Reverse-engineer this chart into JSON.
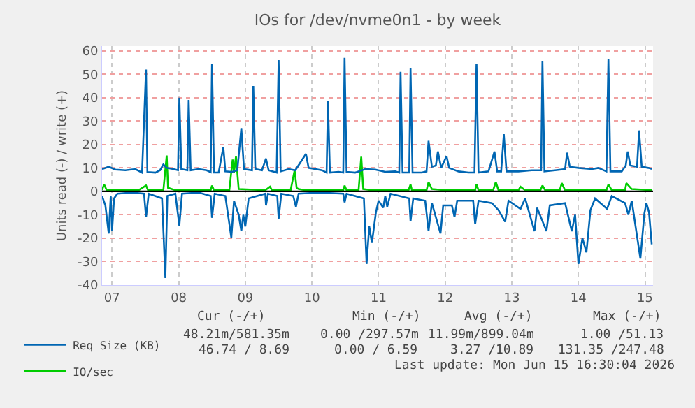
{
  "chart_data": {
    "type": "line",
    "title": "IOs for /dev/nvme0n1 - by week",
    "ylabel": "Units read (-) / write (+)",
    "xlim": [
      7.35,
      15.62
    ],
    "xticks": [
      {
        "value": 7.5,
        "label": "07"
      },
      {
        "value": 8.5,
        "label": "08"
      },
      {
        "value": 9.5,
        "label": "09"
      },
      {
        "value": 10.5,
        "label": "10"
      },
      {
        "value": 11.5,
        "label": "11"
      },
      {
        "value": 12.5,
        "label": "12"
      },
      {
        "value": 13.5,
        "label": "13"
      },
      {
        "value": 14.5,
        "label": "14"
      },
      {
        "value": 15.5,
        "label": "15"
      }
    ],
    "ylim": [
      -40,
      62
    ],
    "yticks": [
      -40,
      -30,
      -20,
      -10,
      0,
      10,
      20,
      30,
      40,
      50,
      60
    ],
    "grid": true,
    "legend": "bottom",
    "marker": "none",
    "line_style": "solid",
    "ref_lines": [
      {
        "axis": "y",
        "value": 0,
        "color": "#000000"
      }
    ],
    "series": [
      {
        "color": "#0066b3",
        "x": [
          7.35,
          7.4,
          7.45,
          7.48,
          7.5,
          7.53,
          7.58,
          7.8,
          7.98,
          8.01,
          8.05,
          8.25,
          8.3,
          8.33,
          8.45,
          8.51,
          8.55,
          8.8,
          8.98,
          9.0,
          9.04,
          9.2,
          9.29,
          9.33,
          9.4,
          9.44,
          9.47,
          9.5,
          9.55,
          9.8,
          9.81,
          9.84,
          9.98,
          10.0,
          10.04,
          10.22,
          10.26,
          10.3,
          10.6,
          10.97,
          10.99,
          11.02,
          11.28,
          11.32,
          11.36,
          11.4,
          11.46,
          11.5,
          11.57,
          11.6,
          11.63,
          11.68,
          11.96,
          11.98,
          12.02,
          12.2,
          12.25,
          12.3,
          12.43,
          12.47,
          12.6,
          12.64,
          12.68,
          12.92,
          12.95,
          13.0,
          13.2,
          13.3,
          13.4,
          13.45,
          13.63,
          13.7,
          13.84,
          13.88,
          14.02,
          14.07,
          14.3,
          14.4,
          14.45,
          14.5,
          14.56,
          14.62,
          14.68,
          14.75,
          14.93,
          15.0,
          15.2,
          15.25,
          15.3,
          15.43,
          15.49,
          15.52,
          15.56,
          15.6
        ],
        "values": [
          -2,
          -6,
          -18,
          -2,
          -17,
          -3,
          -1,
          -0.5,
          -1,
          -11,
          -1,
          -3,
          -37,
          -2,
          -1,
          -14.6,
          -1,
          -0.5,
          -2,
          -11.3,
          -1,
          -2,
          -19.8,
          -4,
          -10,
          -17,
          -10,
          -15,
          -3,
          -1,
          -6,
          -1,
          -2,
          -11.7,
          -1,
          -2,
          -6.6,
          -1,
          -0.5,
          -1,
          -4.7,
          -1,
          -3,
          -31,
          -15,
          -22,
          -9,
          -4,
          -7,
          -2,
          -6.6,
          -1,
          -3,
          -12.8,
          -3,
          -4,
          -17,
          -5,
          -18,
          -6,
          -6,
          -11,
          -4,
          -4,
          -14,
          -4,
          -5,
          -8,
          -13,
          -4,
          -7.5,
          -3,
          -17,
          -7,
          -17,
          -6,
          -5,
          -17,
          -10,
          -31,
          -20,
          -26,
          -8,
          -3,
          -7.5,
          -2,
          -5,
          -10,
          -4,
          -28.7,
          -9.4,
          -5,
          -9,
          -22.6
        ]
      },
      {
        "name": "IO/sec",
        "color": "#00cc00",
        "x": [
          7.35,
          7.38,
          7.42,
          7.9,
          8.01,
          8.04,
          8.27,
          8.32,
          8.34,
          8.45,
          8.98,
          9.0,
          9.03,
          9.26,
          9.31,
          9.33,
          9.36,
          9.4,
          9.8,
          9.87,
          9.9,
          10.18,
          10.24,
          10.27,
          10.3,
          10.4,
          10.97,
          10.99,
          11.02,
          11.2,
          11.24,
          11.27,
          11.4,
          11.95,
          11.98,
          12.0,
          12.22,
          12.25,
          12.3,
          12.5,
          12.95,
          12.97,
          13.0,
          13.22,
          13.26,
          13.3,
          13.6,
          13.63,
          13.7,
          13.93,
          13.96,
          14.0,
          14.22,
          14.25,
          14.3,
          14.92,
          14.95,
          15.0,
          15.2,
          15.22,
          15.3,
          15.6
        ],
        "values": [
          0.5,
          3,
          0.5,
          0.5,
          2.5,
          0.5,
          0.5,
          15.3,
          1.5,
          0.5,
          0.5,
          2.5,
          0.5,
          0.5,
          13.6,
          8,
          15,
          1,
          0.5,
          2,
          0.5,
          0.5,
          9,
          1.5,
          1,
          0.5,
          0.5,
          2.5,
          0.5,
          0.5,
          14.8,
          1,
          0.5,
          0.5,
          3,
          0.5,
          0.5,
          4,
          1,
          0.5,
          0.5,
          3,
          0.5,
          0.5,
          4,
          0.5,
          0.5,
          2,
          0.5,
          0.5,
          2.5,
          0.5,
          0.5,
          3.5,
          0.5,
          0.5,
          3,
          0.5,
          0.5,
          3.5,
          1,
          0.5
        ]
      },
      {
        "name": "Req Size (KB)",
        "color": "#0066b3",
        "x": [
          7.35,
          7.45,
          7.55,
          7.7,
          7.85,
          7.95,
          8.01,
          8.03,
          8.15,
          8.22,
          8.27,
          8.32,
          8.42,
          8.49,
          8.51,
          8.54,
          8.63,
          8.65,
          8.68,
          8.8,
          8.92,
          8.98,
          9.0,
          9.03,
          9.1,
          9.17,
          9.2,
          9.3,
          9.38,
          9.44,
          9.48,
          9.6,
          9.62,
          9.65,
          9.75,
          9.81,
          9.85,
          9.97,
          10.0,
          10.03,
          10.15,
          10.25,
          10.41,
          10.45,
          10.55,
          10.65,
          10.72,
          10.74,
          10.77,
          10.9,
          10.97,
          10.99,
          11.02,
          11.15,
          11.3,
          11.45,
          11.6,
          11.75,
          11.81,
          11.83,
          11.86,
          11.96,
          11.98,
          12.01,
          12.15,
          12.22,
          12.25,
          12.3,
          12.36,
          12.39,
          12.44,
          12.52,
          12.56,
          12.7,
          12.85,
          12.94,
          12.97,
          13.0,
          13.15,
          13.24,
          13.28,
          13.34,
          13.38,
          13.42,
          13.6,
          13.8,
          13.94,
          13.96,
          13.99,
          14.15,
          14.3,
          14.33,
          14.37,
          14.5,
          14.7,
          14.8,
          14.92,
          14.95,
          14.98,
          15.15,
          15.21,
          15.24,
          15.28,
          15.38,
          15.41,
          15.45,
          15.55,
          15.6
        ],
        "values": [
          9.5,
          10.5,
          9.3,
          9.0,
          9.5,
          8.0,
          52,
          8.2,
          8.0,
          9.0,
          11.5,
          10.0,
          9.5,
          9.0,
          40,
          9.5,
          9.0,
          39,
          9.0,
          9.5,
          9.0,
          8.2,
          54.5,
          8.0,
          8.0,
          19,
          8.5,
          8.3,
          9.0,
          27,
          9.5,
          9.0,
          45,
          9.5,
          9.0,
          14,
          9.0,
          8.0,
          56,
          8.5,
          9.5,
          9.0,
          16,
          10.0,
          9.5,
          9.0,
          8.0,
          38.6,
          8.0,
          8.3,
          8.0,
          57,
          8.3,
          8.0,
          9.5,
          9.3,
          8.3,
          8.5,
          8.0,
          51,
          8.0,
          8.0,
          52.5,
          8.0,
          8.0,
          8.5,
          21.6,
          10.5,
          11,
          17,
          10,
          15,
          10,
          8.5,
          8.0,
          8.0,
          54.5,
          8.0,
          8.5,
          17,
          8.5,
          8.5,
          24.4,
          8.5,
          8.5,
          9.0,
          9.0,
          55.7,
          8.5,
          9.0,
          9.5,
          16.5,
          10.5,
          10,
          9.5,
          10.0,
          8.5,
          56.4,
          8.5,
          8.5,
          11,
          17,
          11,
          10.5,
          26,
          10.5,
          10.0,
          9.6
        ]
      }
    ],
    "annotations": [
      "Cur (-/+)",
      "Min (-/+)",
      "Avg (-/+)",
      "Max (-/+)",
      "48.21m/581.35m",
      "0.00 /297.57m",
      "11.99m/899.04m",
      "1.00 /51.13",
      "46.74 / 8.69",
      "0.00 / 6.59",
      "3.27 /10.89",
      "131.35 /247.48",
      "Last update: Mon Jun 15 16:30:04 2026"
    ]
  }
}
